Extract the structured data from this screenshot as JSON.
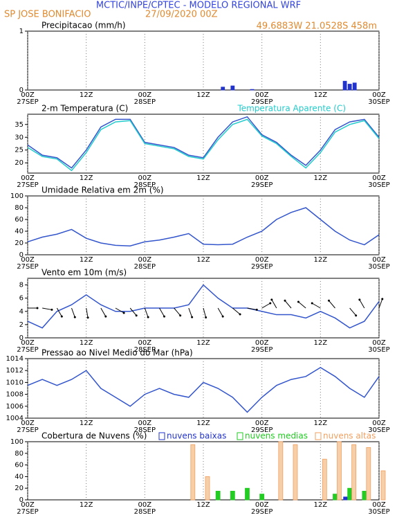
{
  "header": {
    "title": "MCTIC/INPE/CPTEC - MODELO REGIONAL WRF",
    "location": "SP JOSE BONIFACIO",
    "run": "27/09/2020 00Z",
    "coords": "49.6883W 21.0528S 458m"
  },
  "time_axis": {
    "xlim": [
      0,
      72
    ],
    "xticks": [
      {
        "value": 0,
        "label": "00Z"
      },
      {
        "value": 12,
        "label": "12Z"
      },
      {
        "value": 24,
        "label": "00Z"
      },
      {
        "value": 36,
        "label": "12Z"
      },
      {
        "value": 48,
        "label": "00Z"
      },
      {
        "value": 60,
        "label": "12Z"
      },
      {
        "value": 72,
        "label": "00Z"
      }
    ],
    "xdates": [
      {
        "value": 0,
        "label": "27SEP"
      },
      {
        "value": 24,
        "label": "28SEP"
      },
      {
        "value": 48,
        "label": "29SEP"
      },
      {
        "value": 72,
        "label": "30SEP"
      }
    ],
    "x": [
      0,
      3,
      6,
      9,
      12,
      15,
      18,
      21,
      24,
      27,
      30,
      33,
      36,
      39,
      42,
      45,
      48,
      51,
      54,
      57,
      60,
      63,
      66,
      69,
      72
    ]
  },
  "chart_data": [
    {
      "type": "bar",
      "title": "Precipitacao (mm/h)",
      "ylim": [
        0,
        1
      ],
      "yticks": [
        0,
        1
      ],
      "x": [
        40,
        42,
        46,
        65,
        66,
        67
      ],
      "series": [
        {
          "color": "#2233cc",
          "values": [
            0.05,
            0.07,
            0.01,
            0.15,
            0.1,
            0.12
          ]
        }
      ]
    },
    {
      "type": "line",
      "title": "2-m Temperatura (C)",
      "ylim": [
        16,
        39
      ],
      "yticks": [
        20,
        25,
        30,
        35
      ],
      "series": [
        {
          "color": "#3355cc",
          "values": [
            27,
            23,
            22,
            18,
            25,
            34,
            37,
            37,
            28,
            27,
            26,
            23,
            22,
            30,
            36,
            38,
            31,
            28,
            23,
            19,
            25,
            33,
            36,
            37,
            30
          ]
        },
        {
          "name": "Temperatura Aparente (C)",
          "color": "#22cccc",
          "values": [
            26,
            22.5,
            21.5,
            17,
            24,
            33,
            36,
            36.5,
            27.5,
            26.5,
            25.5,
            22.5,
            21.5,
            29,
            35,
            37,
            30.5,
            27.5,
            22.5,
            18,
            24,
            32,
            35,
            36.5,
            29.5
          ]
        }
      ]
    },
    {
      "type": "line",
      "title": "Umidade Relativa em 2m (%)",
      "ylim": [
        0,
        100
      ],
      "yticks": [
        0,
        20,
        40,
        60,
        80,
        100
      ],
      "series": [
        {
          "color": "#3355cc",
          "values": [
            22,
            30,
            35,
            43,
            28,
            20,
            16,
            15,
            22,
            25,
            30,
            36,
            18,
            17,
            18,
            30,
            40,
            60,
            72,
            80,
            60,
            40,
            25,
            17,
            34
          ]
        }
      ]
    },
    {
      "type": "line",
      "title": "Vento em 10m (m/s)",
      "ylim": [
        0,
        9
      ],
      "yticks": [
        0,
        2,
        4,
        6,
        8
      ],
      "series": [
        {
          "color": "#3355cc",
          "values": [
            2.5,
            1.5,
            4,
            5,
            6.5,
            5,
            4,
            4,
            4.5,
            4.5,
            4.5,
            5,
            8,
            6,
            4.5,
            4.5,
            4,
            3.5,
            3.5,
            3,
            4,
            3,
            1.5,
            2.5,
            5.5
          ]
        }
      ],
      "wind_direction": [
        90,
        100,
        150,
        160,
        170,
        150,
        120,
        140,
        160,
        150,
        140,
        160,
        165,
        150,
        130,
        100,
        60,
        330,
        320,
        310,
        300,
        320,
        140,
        330,
        20
      ]
    },
    {
      "type": "line",
      "title": "Pressao ao Nivel Medio do Mar (hPa)",
      "ylim": [
        1004,
        1014
      ],
      "yticks": [
        1004,
        1006,
        1008,
        1010,
        1012,
        1014
      ],
      "series": [
        {
          "color": "#3355cc",
          "values": [
            1009.5,
            1010.5,
            1009.5,
            1010.5,
            1012,
            1009,
            1007.5,
            1006,
            1008,
            1009,
            1008,
            1007.5,
            1010,
            1009,
            1007.5,
            1005,
            1007.5,
            1009.5,
            1010.5,
            1011,
            1012.5,
            1011,
            1009,
            1007.5,
            1011
          ]
        }
      ]
    },
    {
      "type": "bar",
      "title": "Cobertura de Nuvens (%)",
      "ylim": [
        0,
        100
      ],
      "yticks": [
        0,
        20,
        40,
        60,
        80,
        100
      ],
      "series": [
        {
          "name": "nuvens baixas",
          "color": "#2233cc",
          "values": [
            0,
            0,
            0,
            0,
            0,
            0,
            0,
            0,
            0,
            0,
            0,
            0,
            0,
            0,
            0,
            0,
            0,
            0,
            0,
            0,
            0,
            0,
            5,
            0,
            0
          ]
        },
        {
          "name": "nuvens medias",
          "color": "#22cc22",
          "values": [
            0,
            0,
            0,
            0,
            0,
            0,
            0,
            0,
            0,
            0,
            0,
            0,
            0,
            15,
            15,
            20,
            10,
            0,
            0,
            0,
            0,
            10,
            20,
            15,
            0
          ]
        },
        {
          "name": "nuvens altas",
          "color": "#f0a060",
          "values": [
            0,
            0,
            0,
            0,
            0,
            0,
            0,
            0,
            0,
            0,
            0,
            95,
            40,
            0,
            0,
            0,
            0,
            100,
            95,
            0,
            70,
            100,
            95,
            90,
            50
          ]
        }
      ]
    }
  ]
}
